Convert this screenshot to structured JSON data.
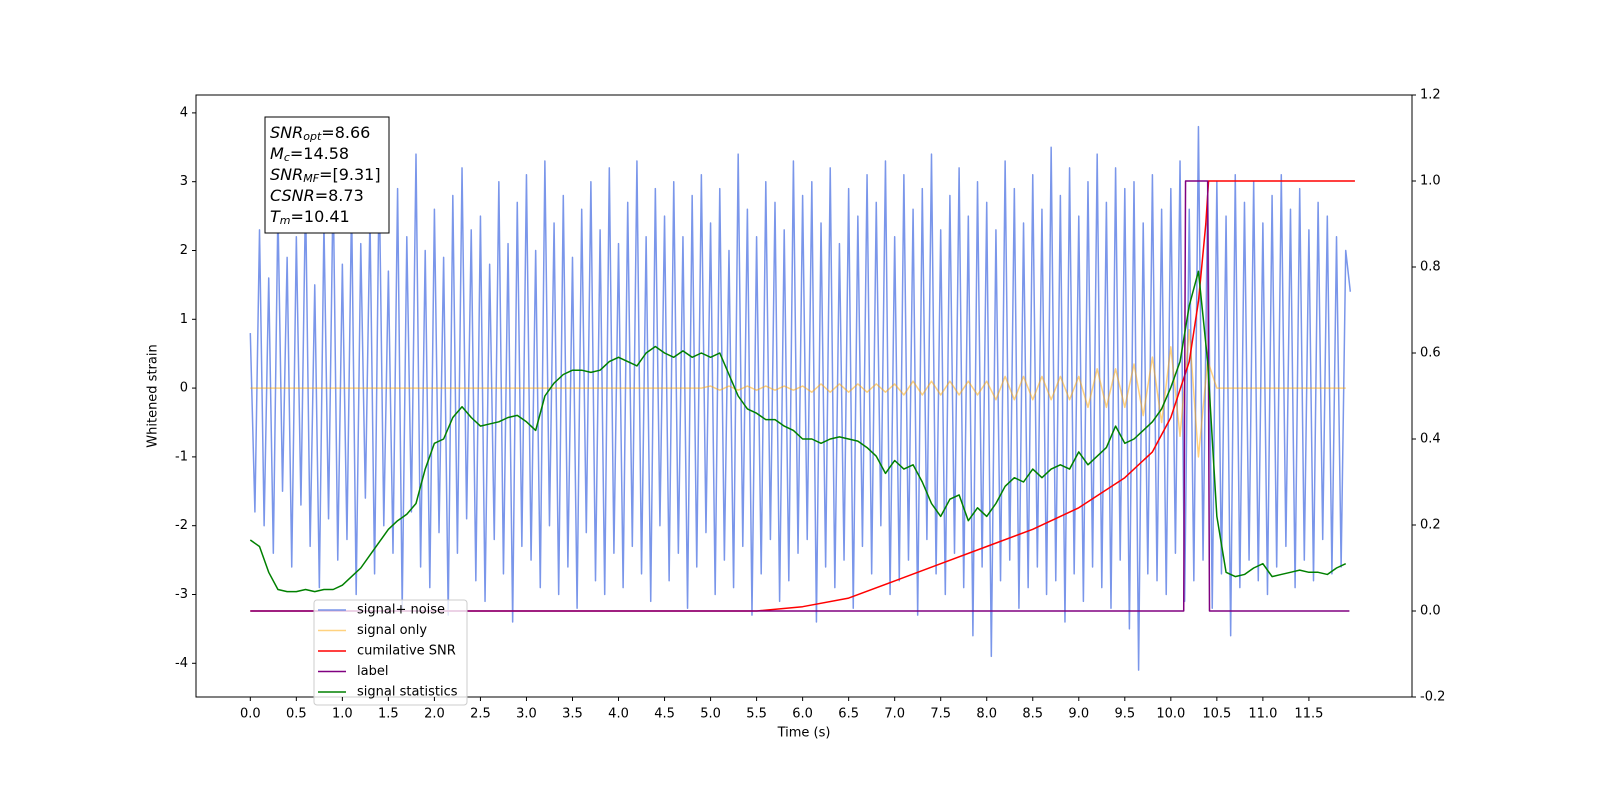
{
  "chart_data": {
    "type": "line",
    "xlabel": "Time (s)",
    "ylabel": "Whitened strain",
    "xlim": [
      -0.59,
      12.62
    ],
    "ylim": [
      -4.49,
      4.26
    ],
    "y2lim": [
      -0.2,
      1.2
    ],
    "grid": false,
    "legend": "lower left",
    "xticks": [
      {
        "value": 0,
        "label": "0.0"
      },
      0.5,
      {
        "value": 1,
        "label": "1.0"
      },
      1.5,
      {
        "value": 2,
        "label": "2.0"
      },
      2.5,
      {
        "value": 3,
        "label": "3.0"
      },
      3.5,
      {
        "value": 4,
        "label": "4.0"
      },
      4.5,
      {
        "value": 5,
        "label": "5.0"
      },
      5.5,
      {
        "value": 6,
        "label": "6.0"
      },
      6.5,
      {
        "value": 7,
        "label": "7.0"
      },
      7.5,
      {
        "value": 8,
        "label": "8.0"
      },
      8.5,
      {
        "value": 9,
        "label": "9.0"
      },
      9.5,
      {
        "value": 10,
        "label": "10.0"
      },
      10.5,
      {
        "value": 11,
        "label": "11.0"
      },
      11.5
    ],
    "yticks": [
      -4,
      -3,
      -2,
      -1,
      0,
      1,
      2,
      3,
      4
    ],
    "y2ticks": [
      -0.2,
      {
        "value": 0,
        "label": "0.0"
      },
      0.2,
      0.4,
      0.6,
      0.8,
      {
        "value": 1,
        "label": "1.0"
      },
      1.2
    ],
    "annotations": [
      {
        "base": "SNR",
        "sub": "opt",
        "text": "=8.66"
      },
      {
        "base": "M",
        "sub": "c",
        "text": "=14.58"
      },
      {
        "base": "SNR",
        "sub": "MF",
        "text": "=[9.31]"
      },
      {
        "base": "CSNR",
        "text": "=8.73"
      },
      {
        "base": "T",
        "sub": "m",
        "text": "=10.41"
      }
    ],
    "series": [
      {
        "name": "signal+ noise",
        "color": "#4169e1",
        "opacity": 0.7,
        "x": [
          0,
          0.05,
          0.1,
          0.15,
          0.2,
          0.25,
          0.3,
          0.35,
          0.4,
          0.45,
          0.5,
          0.55,
          0.6,
          0.65,
          0.7,
          0.75,
          0.8,
          0.85,
          0.9,
          0.95,
          1,
          1.05,
          1.1,
          1.15,
          1.2,
          1.25,
          1.3,
          1.35,
          1.4,
          1.45,
          1.5,
          1.55,
          1.6,
          1.65,
          1.7,
          1.75,
          1.8,
          1.85,
          1.9,
          1.95,
          2,
          2.05,
          2.1,
          2.15,
          2.2,
          2.25,
          2.3,
          2.35,
          2.4,
          2.45,
          2.5,
          2.55,
          2.6,
          2.65,
          2.7,
          2.75,
          2.8,
          2.85,
          2.9,
          2.95,
          3,
          3.05,
          3.1,
          3.15,
          3.2,
          3.25,
          3.3,
          3.35,
          3.4,
          3.45,
          3.5,
          3.55,
          3.6,
          3.65,
          3.7,
          3.75,
          3.8,
          3.85,
          3.9,
          3.95,
          4,
          4.05,
          4.1,
          4.15,
          4.2,
          4.25,
          4.3,
          4.35,
          4.4,
          4.45,
          4.5,
          4.55,
          4.6,
          4.65,
          4.7,
          4.75,
          4.8,
          4.85,
          4.9,
          4.95,
          5,
          5.05,
          5.1,
          5.15,
          5.2,
          5.25,
          5.3,
          5.35,
          5.4,
          5.45,
          5.5,
          5.55,
          5.6,
          5.65,
          5.7,
          5.75,
          5.8,
          5.85,
          5.9,
          5.95,
          6,
          6.05,
          6.1,
          6.15,
          6.2,
          6.25,
          6.3,
          6.35,
          6.4,
          6.45,
          6.5,
          6.55,
          6.6,
          6.65,
          6.7,
          6.75,
          6.8,
          6.85,
          6.9,
          6.95,
          7,
          7.05,
          7.1,
          7.15,
          7.2,
          7.25,
          7.3,
          7.35,
          7.4,
          7.45,
          7.5,
          7.55,
          7.6,
          7.65,
          7.7,
          7.75,
          7.8,
          7.85,
          7.9,
          7.95,
          8,
          8.05,
          8.1,
          8.15,
          8.2,
          8.25,
          8.3,
          8.35,
          8.4,
          8.45,
          8.5,
          8.55,
          8.6,
          8.65,
          8.7,
          8.75,
          8.8,
          8.85,
          8.9,
          8.95,
          9,
          9.05,
          9.1,
          9.15,
          9.2,
          9.25,
          9.3,
          9.35,
          9.4,
          9.45,
          9.5,
          9.55,
          9.6,
          9.65,
          9.7,
          9.75,
          9.8,
          9.85,
          9.9,
          9.95,
          10,
          10.05,
          10.1,
          10.15,
          10.2,
          10.25,
          10.3,
          10.35,
          10.4,
          10.45,
          10.5,
          10.55,
          10.6,
          10.65,
          10.7,
          10.75,
          10.8,
          10.85,
          10.9,
          10.95,
          11,
          11.05,
          11.1,
          11.15,
          11.2,
          11.25,
          11.3,
          11.35,
          11.4,
          11.45,
          11.5,
          11.55,
          11.6,
          11.65,
          11.7,
          11.75,
          11.8,
          11.85,
          11.9,
          11.95
        ],
        "values": [
          0.8,
          -1.8,
          2.3,
          -2.0,
          1.6,
          -2.4,
          2.6,
          -1.5,
          1.9,
          -2.6,
          2.2,
          -1.7,
          2.8,
          -2.3,
          1.5,
          -2.9,
          2.4,
          -1.9,
          3.0,
          -2.5,
          1.8,
          -2.2,
          2.7,
          -3.0,
          2.1,
          -1.6,
          2.5,
          -2.7,
          3.1,
          -2.0,
          1.7,
          -2.4,
          2.9,
          -3.2,
          2.2,
          -1.8,
          3.4,
          -2.6,
          2.0,
          -2.9,
          2.6,
          -2.1,
          1.9,
          -3.3,
          2.8,
          -2.4,
          3.2,
          -1.9,
          2.3,
          -2.8,
          2.5,
          -3.1,
          1.8,
          -2.2,
          3.0,
          -2.7,
          2.1,
          -3.4,
          2.7,
          -2.3,
          3.1,
          -2.5,
          2.0,
          -2.9,
          3.3,
          -2.0,
          2.4,
          -3.0,
          2.8,
          -2.6,
          1.9,
          -3.2,
          2.6,
          -2.1,
          3.0,
          -2.8,
          2.3,
          -3.0,
          3.2,
          -2.4,
          2.1,
          -2.9,
          2.7,
          -2.3,
          3.3,
          -2.7,
          2.2,
          -3.1,
          2.9,
          -2.0,
          2.5,
          -2.8,
          3.0,
          -2.4,
          2.2,
          -3.2,
          2.8,
          -2.6,
          3.1,
          -2.1,
          2.4,
          -3.0,
          2.9,
          -2.5,
          2.0,
          -2.9,
          3.4,
          -2.3,
          2.6,
          -3.3,
          2.2,
          -2.7,
          3.0,
          -2.2,
          2.7,
          -3.1,
          2.3,
          -2.8,
          3.3,
          -2.4,
          2.8,
          -2.2,
          3.0,
          -3.4,
          2.4,
          -2.6,
          3.2,
          -2.9,
          2.1,
          -2.5,
          2.9,
          -3.2,
          2.5,
          -2.3,
          3.1,
          -2.7,
          2.7,
          -2.0,
          3.3,
          -3.0,
          2.2,
          -2.8,
          3.1,
          -2.5,
          2.6,
          -3.3,
          2.9,
          -2.2,
          3.4,
          -2.7,
          2.3,
          -3.0,
          2.8,
          -2.4,
          3.2,
          -2.9,
          2.5,
          -3.6,
          3.0,
          -2.6,
          2.7,
          -3.9,
          2.3,
          -2.8,
          3.3,
          -2.5,
          2.9,
          -3.2,
          2.4,
          -2.9,
          3.1,
          -2.6,
          2.6,
          -3.0,
          3.5,
          -2.8,
          2.8,
          -3.4,
          3.2,
          -2.7,
          2.5,
          -3.1,
          3.0,
          -2.6,
          3.4,
          -2.9,
          2.7,
          -3.2,
          3.2,
          -2.5,
          2.9,
          -3.5,
          3.0,
          -4.1,
          2.4,
          -2.7,
          3.1,
          -2.8,
          2.6,
          -3.0,
          2.9,
          -2.4,
          3.3,
          -3.1,
          2.6,
          -2.8,
          3.8,
          -2.5,
          2.8,
          -3.2,
          3.0,
          -2.7,
          2.5,
          -3.6,
          3.1,
          -2.9,
          2.7,
          -2.5,
          3.0,
          -2.8,
          2.4,
          -3.0,
          2.8,
          -2.6,
          3.1,
          -2.3,
          2.6,
          -2.9,
          2.9,
          -2.5,
          2.3,
          -2.8,
          2.7,
          -2.2,
          2.5,
          -2.7,
          2.2,
          -2.6,
          2.0,
          1.4
        ]
      },
      {
        "name": "signal only",
        "color": "#ffa500",
        "opacity": 0.5,
        "x": [
          0,
          0.1,
          0.2,
          0.3,
          0.4,
          0.5,
          0.6,
          0.7,
          0.8,
          0.9,
          1,
          1.1,
          1.2,
          1.3,
          1.4,
          1.5,
          1.6,
          1.7,
          1.8,
          1.9,
          2,
          2.1,
          2.2,
          2.3,
          2.4,
          2.5,
          2.6,
          2.7,
          2.8,
          2.9,
          3,
          3.1,
          3.2,
          3.3,
          3.4,
          3.5,
          3.6,
          3.7,
          3.8,
          3.9,
          4,
          4.1,
          4.2,
          4.3,
          4.4,
          4.5,
          4.6,
          4.7,
          4.8,
          4.9,
          5,
          5.1,
          5.2,
          5.3,
          5.4,
          5.5,
          5.6,
          5.7,
          5.8,
          5.9,
          6,
          6.1,
          6.2,
          6.3,
          6.4,
          6.5,
          6.6,
          6.7,
          6.8,
          6.9,
          7,
          7.1,
          7.2,
          7.3,
          7.4,
          7.5,
          7.6,
          7.7,
          7.8,
          7.9,
          8,
          8.1,
          8.2,
          8.3,
          8.4,
          8.5,
          8.6,
          8.7,
          8.8,
          8.9,
          9,
          9.1,
          9.2,
          9.3,
          9.4,
          9.5,
          9.6,
          9.7,
          9.8,
          9.9,
          10,
          10.1,
          10.2,
          10.3,
          10.4,
          10.5,
          10.6,
          10.7,
          10.8,
          10.9,
          11,
          11.1,
          11.2,
          11.3,
          11.4,
          11.5,
          11.6,
          11.7,
          11.8,
          11.9
        ],
        "values": [
          0,
          0,
          0,
          0,
          0,
          0,
          0,
          0,
          0,
          0,
          0,
          0,
          0,
          0,
          0,
          0,
          0,
          0,
          0,
          0,
          0,
          0,
          0,
          0,
          0,
          0,
          0,
          0,
          0,
          0,
          0,
          0,
          0,
          0,
          0,
          0,
          0,
          0,
          0,
          0,
          0,
          0,
          0,
          0,
          0,
          0,
          0,
          0,
          0,
          0,
          0.03,
          -0.03,
          0.03,
          -0.03,
          0.03,
          -0.03,
          0.03,
          -0.03,
          0.03,
          -0.03,
          0.03,
          -0.06,
          0.06,
          -0.06,
          0.06,
          -0.06,
          0.06,
          -0.06,
          0.06,
          -0.06,
          0.06,
          -0.1,
          0.1,
          -0.1,
          0.1,
          -0.1,
          0.1,
          -0.1,
          0.1,
          -0.1,
          0.1,
          -0.17,
          0.17,
          -0.17,
          0.17,
          -0.17,
          0.17,
          -0.17,
          0.17,
          -0.17,
          0.17,
          -0.28,
          0.28,
          -0.28,
          0.28,
          -0.28,
          0.35,
          -0.4,
          0.45,
          -0.5,
          0.6,
          -0.7,
          0.85,
          -1.0,
          0.4,
          0,
          0,
          0,
          0,
          0,
          0,
          0,
          0,
          0,
          0,
          0,
          0,
          0,
          0,
          0
        ]
      },
      {
        "name": "cumilative SNR",
        "color": "#ff0000",
        "axis": "y2",
        "x": [
          0,
          5.5,
          6.0,
          6.5,
          7.0,
          7.5,
          8.0,
          8.5,
          9.0,
          9.5,
          9.8,
          10.0,
          10.2,
          10.3,
          10.38,
          10.41,
          12.0
        ],
        "values": [
          0,
          0,
          0.01,
          0.03,
          0.07,
          0.11,
          0.15,
          0.19,
          0.24,
          0.31,
          0.37,
          0.45,
          0.58,
          0.72,
          0.9,
          1.0,
          1.0
        ]
      },
      {
        "name": "label",
        "color": "#800080",
        "axis": "y2",
        "x": [
          0,
          10.14,
          10.16,
          10.4,
          10.42,
          11.94
        ],
        "values": [
          0,
          0,
          1,
          1,
          0,
          0
        ]
      },
      {
        "name": "signal statistics",
        "color": "#008000",
        "axis": "y2",
        "x": [
          0,
          0.1,
          0.2,
          0.3,
          0.4,
          0.5,
          0.6,
          0.7,
          0.8,
          0.9,
          1,
          1.1,
          1.2,
          1.3,
          1.4,
          1.5,
          1.6,
          1.7,
          1.8,
          1.9,
          2,
          2.1,
          2.2,
          2.3,
          2.4,
          2.5,
          2.6,
          2.7,
          2.8,
          2.9,
          3,
          3.1,
          3.2,
          3.3,
          3.4,
          3.5,
          3.6,
          3.7,
          3.8,
          3.9,
          4,
          4.1,
          4.2,
          4.3,
          4.4,
          4.5,
          4.6,
          4.7,
          4.8,
          4.9,
          5,
          5.1,
          5.2,
          5.3,
          5.4,
          5.5,
          5.6,
          5.7,
          5.8,
          5.9,
          6,
          6.1,
          6.2,
          6.3,
          6.4,
          6.5,
          6.6,
          6.7,
          6.8,
          6.9,
          7,
          7.1,
          7.2,
          7.3,
          7.4,
          7.5,
          7.6,
          7.7,
          7.8,
          7.9,
          8,
          8.1,
          8.2,
          8.3,
          8.4,
          8.5,
          8.6,
          8.7,
          8.8,
          8.9,
          9,
          9.1,
          9.2,
          9.3,
          9.4,
          9.5,
          9.6,
          9.7,
          9.8,
          9.9,
          10,
          10.1,
          10.2,
          10.3,
          10.4,
          10.5,
          10.6,
          10.7,
          10.8,
          10.9,
          11,
          11.1,
          11.2,
          11.3,
          11.4,
          11.5,
          11.6,
          11.7,
          11.8,
          11.9
        ],
        "values": [
          0.165,
          0.15,
          0.09,
          0.05,
          0.045,
          0.045,
          0.05,
          0.045,
          0.05,
          0.05,
          0.06,
          0.08,
          0.1,
          0.13,
          0.16,
          0.19,
          0.21,
          0.225,
          0.25,
          0.33,
          0.39,
          0.4,
          0.45,
          0.475,
          0.45,
          0.43,
          0.435,
          0.44,
          0.45,
          0.455,
          0.44,
          0.42,
          0.5,
          0.53,
          0.55,
          0.56,
          0.56,
          0.555,
          0.56,
          0.58,
          0.59,
          0.58,
          0.57,
          0.6,
          0.615,
          0.6,
          0.59,
          0.605,
          0.59,
          0.6,
          0.59,
          0.6,
          0.55,
          0.5,
          0.47,
          0.46,
          0.445,
          0.445,
          0.43,
          0.42,
          0.4,
          0.4,
          0.39,
          0.4,
          0.405,
          0.4,
          0.395,
          0.38,
          0.36,
          0.32,
          0.35,
          0.33,
          0.34,
          0.3,
          0.25,
          0.22,
          0.26,
          0.27,
          0.21,
          0.24,
          0.22,
          0.25,
          0.29,
          0.31,
          0.3,
          0.33,
          0.31,
          0.33,
          0.34,
          0.33,
          0.37,
          0.34,
          0.36,
          0.38,
          0.43,
          0.39,
          0.4,
          0.42,
          0.44,
          0.47,
          0.52,
          0.58,
          0.71,
          0.79,
          0.58,
          0.22,
          0.09,
          0.08,
          0.085,
          0.1,
          0.11,
          0.08,
          0.085,
          0.09,
          0.095,
          0.09,
          0.09,
          0.085,
          0.1,
          0.11
        ]
      }
    ]
  }
}
